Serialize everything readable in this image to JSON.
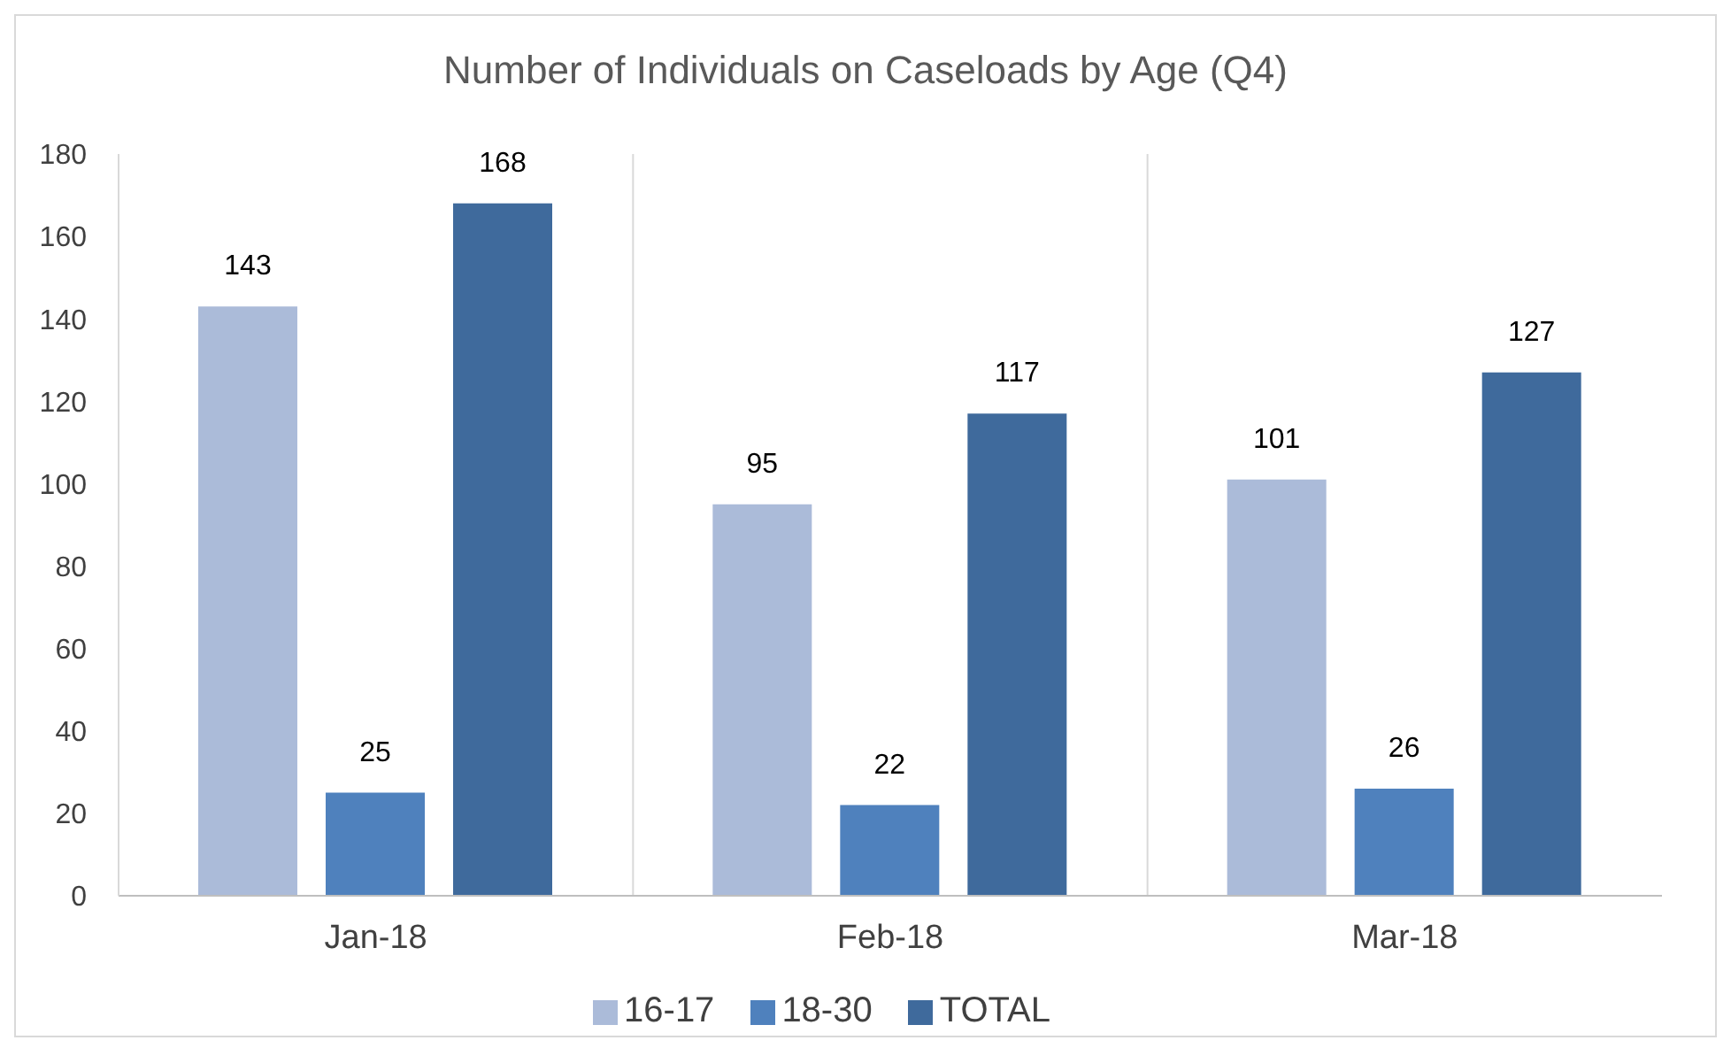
{
  "chart_data": {
    "type": "bar",
    "title": "Number of Individuals on Caseloads by Age (Q4)",
    "categories": [
      "Jan-18",
      "Feb-18",
      "Mar-18"
    ],
    "series": [
      {
        "name": "16-17",
        "color": "#abbbd9",
        "values": [
          143,
          95,
          101
        ]
      },
      {
        "name": "18-30",
        "color": "#4f81bd",
        "values": [
          25,
          22,
          26
        ]
      },
      {
        "name": "TOTAL",
        "color": "#3f6a9c",
        "values": [
          168,
          117,
          127
        ]
      }
    ],
    "ylim": [
      0,
      180
    ],
    "yticks": [
      0,
      20,
      40,
      60,
      80,
      100,
      120,
      140,
      160,
      180
    ],
    "grid": "x",
    "legend": "bottom",
    "data_labels": true
  }
}
